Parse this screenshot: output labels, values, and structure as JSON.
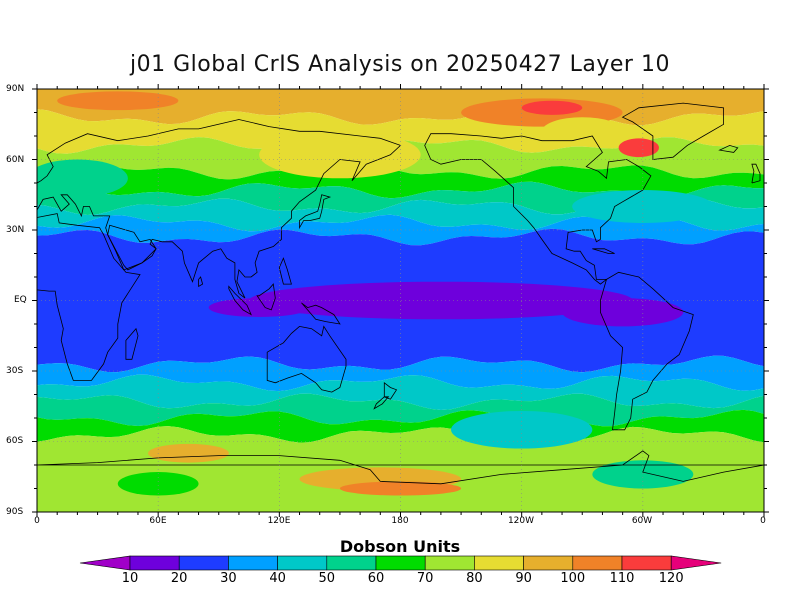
{
  "title": "j01 Global CrIS Analysis on 20250427 Layer 10",
  "lat_labels": [
    "90N",
    "60N",
    "30N",
    "EQ",
    "30S",
    "60S",
    "90S"
  ],
  "lon_labels": [
    "0",
    "60E",
    "120E",
    "180",
    "120W",
    "60W",
    "0"
  ],
  "colorbar": {
    "title": "Dobson Units",
    "levels": [
      "10",
      "20",
      "30",
      "40",
      "50",
      "60",
      "70",
      "80",
      "90",
      "100",
      "110",
      "120"
    ],
    "colors": [
      "#a000c8",
      "#6e00dc",
      "#1e3cff",
      "#00a0ff",
      "#00c8c8",
      "#00d28c",
      "#00dc00",
      "#a0e632",
      "#e6dc32",
      "#e6af2d",
      "#f08228",
      "#fa3c3c",
      "#e6007a"
    ]
  },
  "map": {
    "lon_range": [
      0,
      360
    ],
    "lat_range": [
      -90,
      90
    ],
    "grid": true,
    "field_bands": [
      {
        "lat_from": 90,
        "lat_to": 78,
        "value": 95
      },
      {
        "lat_from": 78,
        "lat_to": 66,
        "value": 85
      },
      {
        "lat_from": 66,
        "lat_to": 55,
        "value": 75
      },
      {
        "lat_from": 55,
        "lat_to": 47,
        "value": 65
      },
      {
        "lat_from": 47,
        "lat_to": 40,
        "value": 55
      },
      {
        "lat_from": 40,
        "lat_to": 33,
        "value": 45
      },
      {
        "lat_from": 33,
        "lat_to": 27,
        "value": 35
      },
      {
        "lat_from": 27,
        "lat_to": -27,
        "value": 25
      },
      {
        "lat_from": -27,
        "lat_to": -35,
        "value": 35
      },
      {
        "lat_from": -35,
        "lat_to": -43,
        "value": 45
      },
      {
        "lat_from": -43,
        "lat_to": -50,
        "value": 55
      },
      {
        "lat_from": -50,
        "lat_to": -57,
        "value": 65
      },
      {
        "lat_from": -57,
        "lat_to": -90,
        "value": 75
      }
    ],
    "field_patches": [
      {
        "lon": 200,
        "lat": 0,
        "rlon": 95,
        "rlat": 8,
        "value": 15
      },
      {
        "lon": 290,
        "lat": -5,
        "rlon": 30,
        "rlat": 6,
        "value": 15
      },
      {
        "lon": 110,
        "lat": -3,
        "rlon": 25,
        "rlat": 4,
        "value": 15
      },
      {
        "lon": 250,
        "lat": 80,
        "rlon": 40,
        "rlat": 6,
        "value": 105
      },
      {
        "lon": 298,
        "lat": 65,
        "rlon": 10,
        "rlat": 4,
        "value": 115
      },
      {
        "lon": 255,
        "lat": 82,
        "rlon": 15,
        "rlat": 3,
        "value": 115
      },
      {
        "lon": 40,
        "lat": 85,
        "rlon": 30,
        "rlat": 4,
        "value": 105
      },
      {
        "lon": 20,
        "lat": 52,
        "rlon": 25,
        "rlat": 8,
        "value": 55
      },
      {
        "lon": 270,
        "lat": 72,
        "rlon": 20,
        "rlat": 6,
        "value": 85
      },
      {
        "lon": 150,
        "lat": 62,
        "rlon": 40,
        "rlat": 10,
        "value": 85
      },
      {
        "lon": 300,
        "lat": 40,
        "rlon": 35,
        "rlat": 7,
        "value": 45
      },
      {
        "lon": 240,
        "lat": -55,
        "rlon": 35,
        "rlat": 8,
        "value": 45
      },
      {
        "lon": 170,
        "lat": -76,
        "rlon": 40,
        "rlat": 5,
        "value": 95
      },
      {
        "lon": 180,
        "lat": -80,
        "rlon": 30,
        "rlat": 3,
        "value": 105
      },
      {
        "lon": 75,
        "lat": -65,
        "rlon": 20,
        "rlat": 4,
        "value": 95
      },
      {
        "lon": 60,
        "lat": -78,
        "rlon": 20,
        "rlat": 5,
        "value": 65
      },
      {
        "lon": 300,
        "lat": -74,
        "rlon": 25,
        "rlat": 6,
        "value": 55
      }
    ]
  }
}
